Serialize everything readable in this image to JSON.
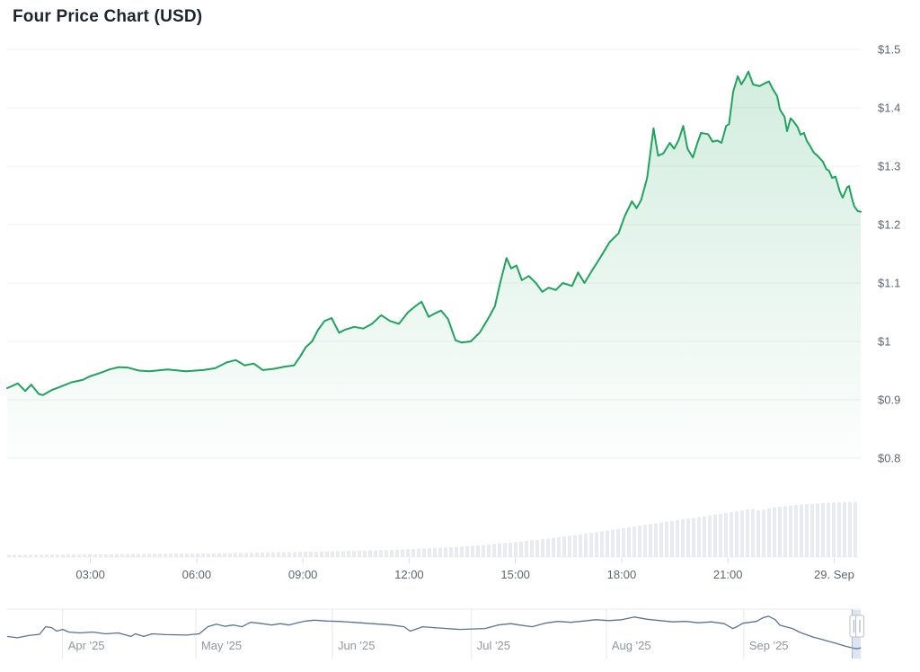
{
  "title": "Four Price Chart (USD)",
  "colors": {
    "background": "#ffffff",
    "title_text": "#1e2330",
    "line_green": "#1fa35d",
    "area_top": "rgba(31,163,93,0.20)",
    "area_bottom": "rgba(31,163,93,0.01)",
    "grid": "#eef0f3",
    "axis_label": "#5f6673",
    "tick": "#d9dce2",
    "volume_bar": "#e9ebf1",
    "nav_line": "#5b7295",
    "nav_grid": "#e6e8ec",
    "nav_label": "#9096a1",
    "nav_mask": "rgba(102,133,194,0.22)",
    "nav_outline": "#aab4c2",
    "handle_fill": "#ffffff",
    "handle_border": "#b9c2d2"
  },
  "chart_data": {
    "type": "area",
    "title": "Four Price Chart (USD)",
    "currency": "USD",
    "legend": "none",
    "grid": "horizontal",
    "y_axis": {
      "side": "right",
      "range": [
        0.8,
        1.5
      ],
      "ticks": [
        [
          1.5,
          "$1.5"
        ],
        [
          1.4,
          "$1.4"
        ],
        [
          1.3,
          "$1.3"
        ],
        [
          1.2,
          "$1.2"
        ],
        [
          1.1,
          "$1.1"
        ],
        [
          1,
          "$1"
        ],
        [
          0.9,
          "$0.9"
        ],
        [
          0.8,
          "$0.8"
        ]
      ]
    },
    "x_axis": {
      "unit": "hours (28-29 Sep)",
      "range_hours": [
        0.65,
        24.75
      ],
      "ticks": [
        [
          3,
          "03:00"
        ],
        [
          6,
          "06:00"
        ],
        [
          9,
          "09:00"
        ],
        [
          12,
          "12:00"
        ],
        [
          15,
          "15:00"
        ],
        [
          18,
          "18:00"
        ],
        [
          21,
          "21:00"
        ],
        [
          24,
          "29. Sep"
        ]
      ]
    },
    "price_series": [
      [
        0.65,
        0.92
      ],
      [
        0.95,
        0.928
      ],
      [
        1.16,
        0.915
      ],
      [
        1.33,
        0.926
      ],
      [
        1.54,
        0.91
      ],
      [
        1.66,
        0.908
      ],
      [
        1.92,
        0.917
      ],
      [
        2.14,
        0.922
      ],
      [
        2.47,
        0.93
      ],
      [
        2.78,
        0.934
      ],
      [
        2.98,
        0.94
      ],
      [
        3.28,
        0.946
      ],
      [
        3.54,
        0.952
      ],
      [
        3.81,
        0.956
      ],
      [
        4.07,
        0.955
      ],
      [
        4.37,
        0.95
      ],
      [
        4.67,
        0.949
      ],
      [
        5.18,
        0.952
      ],
      [
        5.69,
        0.949
      ],
      [
        6.19,
        0.951
      ],
      [
        6.52,
        0.954
      ],
      [
        6.85,
        0.964
      ],
      [
        7.1,
        0.968
      ],
      [
        7.36,
        0.959
      ],
      [
        7.61,
        0.962
      ],
      [
        7.87,
        0.951
      ],
      [
        8.17,
        0.953
      ],
      [
        8.5,
        0.957
      ],
      [
        8.75,
        0.959
      ],
      [
        8.93,
        0.975
      ],
      [
        9.08,
        0.99
      ],
      [
        9.26,
        1.0
      ],
      [
        9.43,
        1.02
      ],
      [
        9.61,
        1.035
      ],
      [
        9.81,
        1.04
      ],
      [
        10.02,
        1.015
      ],
      [
        10.19,
        1.02
      ],
      [
        10.45,
        1.025
      ],
      [
        10.7,
        1.022
      ],
      [
        10.95,
        1.03
      ],
      [
        11.21,
        1.045
      ],
      [
        11.46,
        1.035
      ],
      [
        11.71,
        1.03
      ],
      [
        11.97,
        1.05
      ],
      [
        12.17,
        1.06
      ],
      [
        12.35,
        1.068
      ],
      [
        12.55,
        1.042
      ],
      [
        12.73,
        1.048
      ],
      [
        12.9,
        1.053
      ],
      [
        13.1,
        1.038
      ],
      [
        13.31,
        1.002
      ],
      [
        13.48,
        0.998
      ],
      [
        13.74,
        1.0
      ],
      [
        13.99,
        1.015
      ],
      [
        14.24,
        1.04
      ],
      [
        14.42,
        1.06
      ],
      [
        14.57,
        1.1
      ],
      [
        14.75,
        1.143
      ],
      [
        14.88,
        1.125
      ],
      [
        15.03,
        1.13
      ],
      [
        15.18,
        1.105
      ],
      [
        15.38,
        1.112
      ],
      [
        15.58,
        1.1
      ],
      [
        15.76,
        1.085
      ],
      [
        15.94,
        1.092
      ],
      [
        16.14,
        1.088
      ],
      [
        16.34,
        1.1
      ],
      [
        16.6,
        1.095
      ],
      [
        16.77,
        1.118
      ],
      [
        16.95,
        1.1
      ],
      [
        17.15,
        1.12
      ],
      [
        17.41,
        1.145
      ],
      [
        17.66,
        1.17
      ],
      [
        17.91,
        1.185
      ],
      [
        18.09,
        1.215
      ],
      [
        18.29,
        1.24
      ],
      [
        18.42,
        1.228
      ],
      [
        18.55,
        1.242
      ],
      [
        18.72,
        1.28
      ],
      [
        18.9,
        1.365
      ],
      [
        19.03,
        1.318
      ],
      [
        19.18,
        1.322
      ],
      [
        19.36,
        1.34
      ],
      [
        19.48,
        1.33
      ],
      [
        19.61,
        1.345
      ],
      [
        19.74,
        1.369
      ],
      [
        19.86,
        1.33
      ],
      [
        20.01,
        1.315
      ],
      [
        20.14,
        1.34
      ],
      [
        20.24,
        1.357
      ],
      [
        20.44,
        1.355
      ],
      [
        20.57,
        1.342
      ],
      [
        20.7,
        1.344
      ],
      [
        20.82,
        1.34
      ],
      [
        20.95,
        1.369
      ],
      [
        21.03,
        1.372
      ],
      [
        21.15,
        1.428
      ],
      [
        21.28,
        1.454
      ],
      [
        21.38,
        1.44
      ],
      [
        21.48,
        1.45
      ],
      [
        21.58,
        1.462
      ],
      [
        21.71,
        1.44
      ],
      [
        21.89,
        1.437
      ],
      [
        22.04,
        1.442
      ],
      [
        22.16,
        1.445
      ],
      [
        22.27,
        1.432
      ],
      [
        22.39,
        1.42
      ],
      [
        22.47,
        1.397
      ],
      [
        22.54,
        1.39
      ],
      [
        22.6,
        1.385
      ],
      [
        22.67,
        1.36
      ],
      [
        22.77,
        1.382
      ],
      [
        22.85,
        1.377
      ],
      [
        22.97,
        1.367
      ],
      [
        23.05,
        1.354
      ],
      [
        23.15,
        1.357
      ],
      [
        23.23,
        1.343
      ],
      [
        23.3,
        1.337
      ],
      [
        23.43,
        1.323
      ],
      [
        23.53,
        1.318
      ],
      [
        23.68,
        1.308
      ],
      [
        23.78,
        1.295
      ],
      [
        23.86,
        1.292
      ],
      [
        23.94,
        1.28
      ],
      [
        24.04,
        1.282
      ],
      [
        24.16,
        1.257
      ],
      [
        24.24,
        1.246
      ],
      [
        24.37,
        1.264
      ],
      [
        24.42,
        1.266
      ],
      [
        24.5,
        1.246
      ],
      [
        24.57,
        1.231
      ],
      [
        24.67,
        1.223
      ],
      [
        24.75,
        1.222
      ]
    ],
    "volume_profile": [
      [
        0,
        0.04
      ],
      [
        0.05,
        0.042
      ],
      [
        0.1,
        0.048
      ],
      [
        0.15,
        0.053
      ],
      [
        0.2,
        0.06
      ],
      [
        0.25,
        0.068
      ],
      [
        0.3,
        0.078
      ],
      [
        0.35,
        0.092
      ],
      [
        0.4,
        0.108
      ],
      [
        0.45,
        0.128
      ],
      [
        0.48,
        0.148
      ],
      [
        0.52,
        0.175
      ],
      [
        0.55,
        0.205
      ],
      [
        0.58,
        0.245
      ],
      [
        0.61,
        0.29
      ],
      [
        0.64,
        0.34
      ],
      [
        0.67,
        0.4
      ],
      [
        0.7,
        0.465
      ],
      [
        0.73,
        0.535
      ],
      [
        0.76,
        0.6
      ],
      [
        0.79,
        0.665
      ],
      [
        0.82,
        0.73
      ],
      [
        0.85,
        0.8
      ],
      [
        0.87,
        0.85
      ],
      [
        0.88,
        0.82
      ],
      [
        0.895,
        0.875
      ],
      [
        0.91,
        0.9
      ],
      [
        0.93,
        0.93
      ],
      [
        0.95,
        0.95
      ],
      [
        0.97,
        0.965
      ],
      [
        0.99,
        0.975
      ],
      [
        1,
        0.98
      ]
    ],
    "navigator": {
      "period": "Apr 2025 - Sep 2025",
      "months": [
        [
          0.065,
          "Apr '25"
        ],
        [
          0.221,
          "May '25"
        ],
        [
          0.381,
          "Jun '25"
        ],
        [
          0.544,
          "Jul '25"
        ],
        [
          0.702,
          "Aug '25"
        ],
        [
          0.863,
          "Sep '25"
        ]
      ],
      "selection": [
        0.99,
        1.0
      ],
      "points": [
        [
          0,
          0.4
        ],
        [
          0.012,
          0.37
        ],
        [
          0.025,
          0.42
        ],
        [
          0.038,
          0.45
        ],
        [
          0.045,
          0.62
        ],
        [
          0.052,
          0.6
        ],
        [
          0.058,
          0.52
        ],
        [
          0.065,
          0.56
        ],
        [
          0.072,
          0.5
        ],
        [
          0.085,
          0.48
        ],
        [
          0.1,
          0.5
        ],
        [
          0.115,
          0.46
        ],
        [
          0.13,
          0.48
        ],
        [
          0.145,
          0.4
        ],
        [
          0.15,
          0.46
        ],
        [
          0.16,
          0.4
        ],
        [
          0.17,
          0.46
        ],
        [
          0.185,
          0.44
        ],
        [
          0.21,
          0.43
        ],
        [
          0.225,
          0.46
        ],
        [
          0.235,
          0.62
        ],
        [
          0.245,
          0.68
        ],
        [
          0.255,
          0.63
        ],
        [
          0.265,
          0.66
        ],
        [
          0.275,
          0.62
        ],
        [
          0.285,
          0.72
        ],
        [
          0.295,
          0.7
        ],
        [
          0.31,
          0.66
        ],
        [
          0.32,
          0.69
        ],
        [
          0.33,
          0.66
        ],
        [
          0.34,
          0.71
        ],
        [
          0.35,
          0.75
        ],
        [
          0.36,
          0.77
        ],
        [
          0.375,
          0.75
        ],
        [
          0.39,
          0.74
        ],
        [
          0.405,
          0.72
        ],
        [
          0.42,
          0.7
        ],
        [
          0.435,
          0.68
        ],
        [
          0.45,
          0.66
        ],
        [
          0.465,
          0.62
        ],
        [
          0.472,
          0.52
        ],
        [
          0.478,
          0.56
        ],
        [
          0.487,
          0.62
        ],
        [
          0.5,
          0.6
        ],
        [
          0.515,
          0.58
        ],
        [
          0.53,
          0.56
        ],
        [
          0.545,
          0.57
        ],
        [
          0.56,
          0.58
        ],
        [
          0.575,
          0.66
        ],
        [
          0.59,
          0.69
        ],
        [
          0.6,
          0.66
        ],
        [
          0.615,
          0.62
        ],
        [
          0.63,
          0.7
        ],
        [
          0.645,
          0.74
        ],
        [
          0.66,
          0.72
        ],
        [
          0.675,
          0.75
        ],
        [
          0.69,
          0.78
        ],
        [
          0.705,
          0.76
        ],
        [
          0.72,
          0.78
        ],
        [
          0.735,
          0.84
        ],
        [
          0.75,
          0.79
        ],
        [
          0.765,
          0.76
        ],
        [
          0.78,
          0.73
        ],
        [
          0.795,
          0.74
        ],
        [
          0.81,
          0.71
        ],
        [
          0.825,
          0.73
        ],
        [
          0.84,
          0.69
        ],
        [
          0.85,
          0.58
        ],
        [
          0.855,
          0.62
        ],
        [
          0.862,
          0.7
        ],
        [
          0.87,
          0.72
        ],
        [
          0.878,
          0.74
        ],
        [
          0.885,
          0.82
        ],
        [
          0.892,
          0.86
        ],
        [
          0.9,
          0.78
        ],
        [
          0.905,
          0.66
        ],
        [
          0.912,
          0.62
        ],
        [
          0.92,
          0.58
        ],
        [
          0.928,
          0.5
        ],
        [
          0.936,
          0.44
        ],
        [
          0.945,
          0.38
        ],
        [
          0.953,
          0.34
        ],
        [
          0.96,
          0.3
        ],
        [
          0.968,
          0.26
        ],
        [
          0.975,
          0.22
        ],
        [
          0.982,
          0.18
        ],
        [
          0.99,
          0.14
        ],
        [
          0.995,
          0.12
        ],
        [
          1,
          0.14
        ]
      ]
    }
  }
}
